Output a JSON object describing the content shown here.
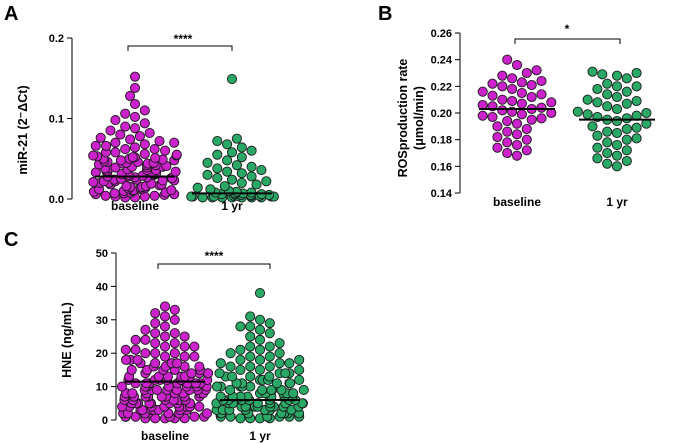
{
  "colors": {
    "baseline": "#cc22cc",
    "one_yr": "#2aa866",
    "stroke": "#1a1a1a"
  },
  "chart_data": [
    {
      "id": "A",
      "type": "scatter",
      "panel_label": "A",
      "ylabel": "miR-21 (2⁻ΔCt)",
      "ylim": [
        0,
        0.2
      ],
      "yticks": [
        0.0,
        0.1,
        0.2
      ],
      "ytick_labels": [
        "0.0",
        "0.1",
        "0.2"
      ],
      "categories": [
        "baseline",
        "1 yr"
      ],
      "significance": "****",
      "series": [
        {
          "values": [
            0.152,
            0.138,
            0.128,
            0.118,
            0.11,
            0.106,
            0.102,
            0.098,
            0.094,
            0.09,
            0.088,
            0.085,
            0.082,
            0.08,
            0.078,
            0.076,
            0.074,
            0.072,
            0.07,
            0.068,
            0.066,
            0.064,
            0.062,
            0.06,
            0.058,
            0.056,
            0.055,
            0.054,
            0.053,
            0.052,
            0.051,
            0.05,
            0.049,
            0.048,
            0.047,
            0.046,
            0.045,
            0.044,
            0.043,
            0.042,
            0.041,
            0.04,
            0.039,
            0.038,
            0.037,
            0.036,
            0.035,
            0.034,
            0.033,
            0.032,
            0.031,
            0.03,
            0.029,
            0.028,
            0.027,
            0.026,
            0.025,
            0.024,
            0.023,
            0.022,
            0.021,
            0.02,
            0.019,
            0.018,
            0.017,
            0.016,
            0.015,
            0.014,
            0.013,
            0.012,
            0.011,
            0.01,
            0.009,
            0.008,
            0.007,
            0.006,
            0.005,
            0.004,
            0.003,
            0.002,
            0.048,
            0.044,
            0.04,
            0.036,
            0.032,
            0.028,
            0.024,
            0.02,
            0.016,
            0.012,
            0.008,
            0.004,
            0.052,
            0.046,
            0.038,
            0.03,
            0.022,
            0.014,
            0.006,
            0.042,
            0.034,
            0.026,
            0.018,
            0.01,
            0.002,
            0.062,
            0.058,
            0.054,
            0.05,
            0.039,
            0.031,
            0.023,
            0.015,
            0.007,
            0.003,
            0.07,
            0.066,
            0.045,
            0.027,
            0.011
          ],
          "median": 0.028
        },
        {
          "values": [
            0.149,
            0.075,
            0.072,
            0.068,
            0.064,
            0.06,
            0.058,
            0.055,
            0.052,
            0.048,
            0.045,
            0.042,
            0.04,
            0.038,
            0.036,
            0.034,
            0.032,
            0.03,
            0.028,
            0.026,
            0.024,
            0.022,
            0.02,
            0.018,
            0.016,
            0.014,
            0.012,
            0.01,
            0.009,
            0.008,
            0.008,
            0.007,
            0.007,
            0.006,
            0.006,
            0.006,
            0.005,
            0.005,
            0.005,
            0.004,
            0.004,
            0.004,
            0.004,
            0.003,
            0.003,
            0.003,
            0.003,
            0.003,
            0.002,
            0.002,
            0.002,
            0.002,
            0.002,
            0.002,
            0.002
          ],
          "median": 0.007
        }
      ]
    },
    {
      "id": "B",
      "type": "scatter",
      "panel_label": "B",
      "ylabel": "ROSproduction rate",
      "ylabel2": "(μmol/min)",
      "ylim": [
        0.14,
        0.26
      ],
      "yticks": [
        0.14,
        0.16,
        0.18,
        0.2,
        0.22,
        0.24,
        0.26
      ],
      "ytick_labels": [
        "0.14",
        "0.16",
        "0.18",
        "0.20",
        "0.22",
        "0.24",
        "0.26"
      ],
      "categories": [
        "baseline",
        "1 yr"
      ],
      "significance": "*",
      "series": [
        {
          "values": [
            0.24,
            0.236,
            0.232,
            0.23,
            0.228,
            0.226,
            0.224,
            0.223,
            0.222,
            0.221,
            0.22,
            0.218,
            0.216,
            0.215,
            0.214,
            0.213,
            0.212,
            0.21,
            0.209,
            0.208,
            0.207,
            0.206,
            0.205,
            0.204,
            0.203,
            0.202,
            0.201,
            0.2,
            0.199,
            0.198,
            0.197,
            0.196,
            0.195,
            0.194,
            0.192,
            0.19,
            0.188,
            0.186,
            0.184,
            0.182,
            0.18,
            0.178,
            0.176,
            0.174,
            0.172,
            0.17,
            0.168
          ],
          "median": 0.203
        },
        {
          "values": [
            0.231,
            0.23,
            0.229,
            0.228,
            0.226,
            0.222,
            0.22,
            0.22,
            0.218,
            0.216,
            0.214,
            0.212,
            0.21,
            0.209,
            0.208,
            0.207,
            0.205,
            0.203,
            0.201,
            0.2,
            0.199,
            0.198,
            0.197,
            0.196,
            0.195,
            0.194,
            0.192,
            0.19,
            0.189,
            0.188,
            0.186,
            0.185,
            0.183,
            0.181,
            0.18,
            0.178,
            0.176,
            0.174,
            0.172,
            0.17,
            0.168,
            0.166,
            0.164,
            0.162,
            0.16
          ],
          "median": 0.195
        }
      ]
    },
    {
      "id": "C",
      "type": "scatter",
      "panel_label": "C",
      "ylabel": "HNE (ng/mL)",
      "ylim": [
        0,
        50
      ],
      "yticks": [
        0,
        10,
        20,
        30,
        40,
        50
      ],
      "ytick_labels": [
        "0",
        "10",
        "20",
        "30",
        "40",
        "50"
      ],
      "categories": [
        "baseline",
        "1 yr"
      ],
      "significance": "****",
      "series": [
        {
          "values": [
            34,
            33,
            32,
            31,
            30,
            29,
            28,
            27,
            26,
            26,
            25,
            25,
            24,
            24,
            23,
            23,
            22,
            22,
            22,
            21,
            21,
            20,
            20,
            20,
            19,
            19,
            19,
            18,
            18,
            18,
            17,
            17,
            17,
            17,
            16,
            16,
            16,
            16,
            15,
            15,
            15,
            15,
            15,
            14,
            14,
            14,
            14,
            14,
            13,
            13,
            13,
            13,
            13,
            13,
            12,
            12,
            12,
            12,
            12,
            12,
            11,
            11,
            11,
            11,
            11,
            11,
            11,
            10,
            10,
            10,
            10,
            10,
            10,
            10,
            9,
            9,
            9,
            9,
            9,
            9,
            9,
            9,
            8,
            8,
            8,
            8,
            8,
            8,
            8,
            8,
            7,
            7,
            7,
            7,
            7,
            7,
            7,
            7,
            6,
            6,
            6,
            6,
            6,
            6,
            6,
            6,
            5,
            5,
            5,
            5,
            5,
            5,
            5,
            5,
            4,
            4,
            4,
            4,
            4,
            4,
            4,
            4,
            3,
            3,
            3,
            3,
            3,
            3,
            3,
            2,
            2,
            2,
            2,
            2,
            2,
            2,
            1,
            1,
            1,
            1,
            1,
            1,
            0.5,
            0.5,
            0.5,
            0.5,
            0.5
          ],
          "median": 11.5
        },
        {
          "values": [
            38,
            31,
            30,
            29,
            28,
            28,
            27,
            26,
            25,
            24,
            23,
            22,
            22,
            21,
            21,
            20,
            20,
            19,
            19,
            18,
            18,
            18,
            17,
            17,
            17,
            16,
            16,
            16,
            15,
            15,
            15,
            14,
            14,
            14,
            14,
            13,
            13,
            13,
            13,
            12,
            12,
            12,
            12,
            11,
            11,
            11,
            11,
            11,
            10,
            10,
            10,
            10,
            10,
            9,
            9,
            9,
            9,
            9,
            9,
            8,
            8,
            8,
            8,
            8,
            8,
            8,
            7,
            7,
            7,
            7,
            7,
            7,
            7,
            6,
            6,
            6,
            6,
            6,
            6,
            6,
            6,
            5,
            5,
            5,
            5,
            5,
            5,
            5,
            5,
            4,
            4,
            4,
            4,
            4,
            4,
            4,
            4,
            3,
            3,
            3,
            3,
            3,
            3,
            3,
            3,
            2,
            2,
            2,
            2,
            2,
            2,
            2,
            1,
            1,
            1,
            1,
            1,
            1,
            0.5,
            0.5,
            0.5,
            0.5
          ],
          "median": 6.0
        }
      ]
    }
  ]
}
